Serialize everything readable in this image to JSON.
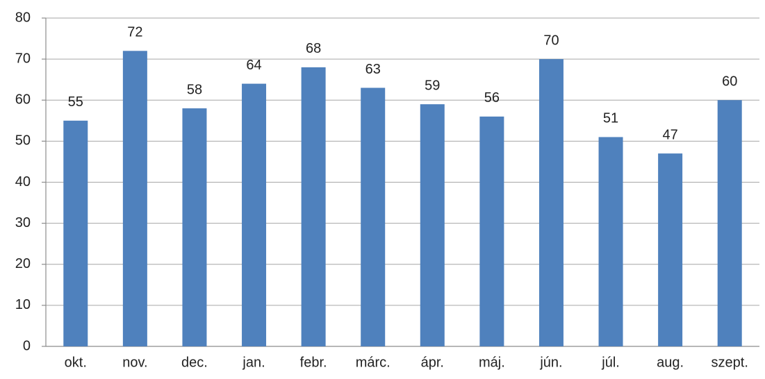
{
  "chart_data": {
    "type": "bar",
    "categories": [
      "okt.",
      "nov.",
      "dec.",
      "jan.",
      "febr.",
      "márc.",
      "ápr.",
      "máj.",
      "jún.",
      "júl.",
      "aug.",
      "szept."
    ],
    "values": [
      55,
      72,
      58,
      64,
      68,
      63,
      59,
      56,
      70,
      51,
      47,
      60
    ],
    "color": "#4f81bd",
    "ylim": [
      0,
      80
    ],
    "yticks": [
      0,
      10,
      20,
      30,
      40,
      50,
      60,
      70,
      80
    ],
    "grid": true
  }
}
